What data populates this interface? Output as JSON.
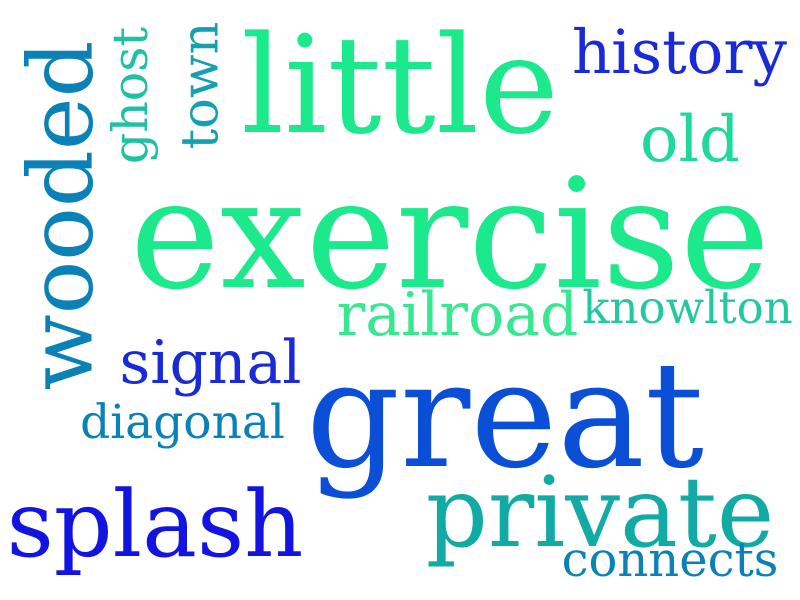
{
  "words": [
    {
      "text": "little",
      "color": "#1ce88c"
    },
    {
      "text": "exercise",
      "color": "#1ce88c"
    },
    {
      "text": "great",
      "color": "#0a4fd6"
    },
    {
      "text": "wooded",
      "color": "#0a82b8"
    },
    {
      "text": "splash",
      "color": "#1414e0"
    },
    {
      "text": "private",
      "color": "#12aaa4"
    },
    {
      "text": "history",
      "color": "#1a2ad6"
    },
    {
      "text": "railroad",
      "color": "#38e890"
    },
    {
      "text": "knowlton",
      "color": "#24c8a0"
    },
    {
      "text": "signal",
      "color": "#1a2ad6"
    },
    {
      "text": "diagonal",
      "color": "#0a82b8"
    },
    {
      "text": "connects",
      "color": "#0a82b8"
    },
    {
      "text": "old",
      "color": "#20d898"
    },
    {
      "text": "ghost",
      "color": "#20c0a4"
    },
    {
      "text": "town",
      "color": "#14a0b0"
    }
  ]
}
